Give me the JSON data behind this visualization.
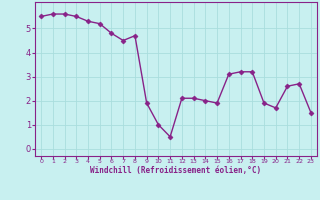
{
  "x": [
    0,
    1,
    2,
    3,
    4,
    5,
    6,
    7,
    8,
    9,
    10,
    11,
    12,
    13,
    14,
    15,
    16,
    17,
    18,
    19,
    20,
    21,
    22,
    23
  ],
  "y": [
    5.5,
    5.6,
    5.6,
    5.5,
    5.3,
    5.2,
    4.8,
    4.5,
    4.7,
    1.9,
    1.0,
    0.5,
    2.1,
    2.1,
    2.0,
    1.9,
    3.1,
    3.2,
    3.2,
    1.9,
    1.7,
    2.6,
    2.7,
    1.5
  ],
  "line_color": "#882288",
  "marker": "D",
  "markersize": 2.5,
  "linewidth": 1.0,
  "xlabel": "Windchill (Refroidissement éolien,°C)",
  "xlabel_color": "#882288",
  "bg_color": "#c8f0f0",
  "grid_color": "#aadddd",
  "axis_color": "#882288",
  "tick_color": "#882288",
  "ylim": [
    -0.3,
    6.1
  ],
  "xlim": [
    -0.5,
    23.5
  ],
  "yticks": [
    0,
    1,
    2,
    3,
    4,
    5
  ],
  "xticks": [
    0,
    1,
    2,
    3,
    4,
    5,
    6,
    7,
    8,
    9,
    10,
    11,
    12,
    13,
    14,
    15,
    16,
    17,
    18,
    19,
    20,
    21,
    22,
    23
  ]
}
